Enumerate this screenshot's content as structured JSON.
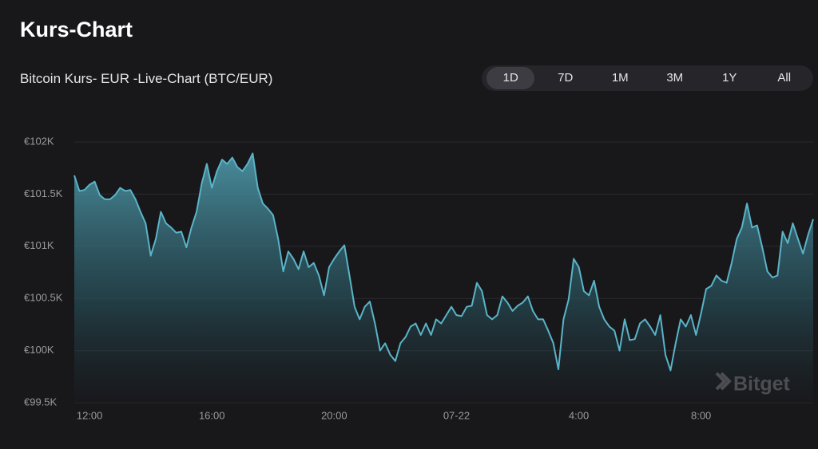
{
  "header": {
    "title": "Kurs-Chart",
    "subtitle": "Bitcoin Kurs- EUR -Live-Chart (BTC/EUR)"
  },
  "range_buttons": {
    "labels": [
      "1D",
      "7D",
      "1M",
      "3M",
      "1Y",
      "All"
    ],
    "selected": "1D"
  },
  "watermark": "Bitget",
  "chart_data": {
    "type": "area",
    "color": "#5ab4c8",
    "grid": true,
    "ylim": [
      99500,
      102000
    ],
    "yticks": [
      {
        "value": 99500,
        "label": "€99.5K"
      },
      {
        "value": 100000,
        "label": "€100K"
      },
      {
        "value": 100500,
        "label": "€100.5K"
      },
      {
        "value": 101000,
        "label": "€101K"
      },
      {
        "value": 101500,
        "label": "€101.5K"
      },
      {
        "value": 102000,
        "label": "€102K"
      }
    ],
    "categories": [
      null,
      null,
      null,
      "12:00",
      null,
      null,
      null,
      null,
      null,
      null,
      null,
      null,
      null,
      null,
      null,
      null,
      null,
      null,
      null,
      null,
      null,
      null,
      null,
      null,
      null,
      null,
      null,
      "16:00",
      null,
      null,
      null,
      null,
      null,
      null,
      null,
      null,
      null,
      null,
      null,
      null,
      null,
      null,
      null,
      null,
      null,
      null,
      null,
      null,
      null,
      null,
      null,
      "20:00",
      null,
      null,
      null,
      null,
      null,
      null,
      null,
      null,
      null,
      null,
      null,
      null,
      null,
      null,
      null,
      null,
      null,
      null,
      null,
      null,
      null,
      null,
      null,
      "07-22",
      null,
      null,
      null,
      null,
      null,
      null,
      null,
      null,
      null,
      null,
      null,
      null,
      null,
      null,
      null,
      null,
      null,
      null,
      null,
      null,
      null,
      null,
      null,
      "4:00",
      null,
      null,
      null,
      null,
      null,
      null,
      null,
      null,
      null,
      null,
      null,
      null,
      null,
      null,
      null,
      null,
      null,
      null,
      null,
      null,
      null,
      null,
      null,
      "8:00",
      null,
      null,
      null,
      null,
      null,
      null,
      null,
      null,
      null,
      null,
      null,
      null,
      null,
      null,
      null,
      null,
      null,
      null,
      null,
      null,
      null,
      null
    ],
    "values": [
      101680,
      101530,
      101540,
      101590,
      101620,
      101490,
      101450,
      101450,
      101490,
      101560,
      101530,
      101540,
      101450,
      101330,
      101220,
      100910,
      101070,
      101330,
      101220,
      101180,
      101130,
      101140,
      100990,
      101180,
      101330,
      101600,
      101790,
      101560,
      101720,
      101830,
      101790,
      101850,
      101760,
      101720,
      101790,
      101890,
      101560,
      101410,
      101360,
      101300,
      101070,
      100760,
      100950,
      100880,
      100780,
      100950,
      100800,
      100840,
      100720,
      100530,
      100800,
      100880,
      100950,
      101010,
      100720,
      100420,
      100300,
      100420,
      100470,
      100260,
      100000,
      100070,
      99960,
      99900,
      100070,
      100130,
      100230,
      100260,
      100150,
      100260,
      100150,
      100300,
      100260,
      100340,
      100420,
      100340,
      100330,
      100420,
      100430,
      100650,
      100570,
      100340,
      100300,
      100340,
      100520,
      100460,
      100380,
      100430,
      100460,
      100520,
      100380,
      100300,
      100300,
      100190,
      100070,
      99820,
      100300,
      100490,
      100880,
      100800,
      100570,
      100530,
      100670,
      100420,
      100300,
      100230,
      100190,
      100000,
      100300,
      100100,
      100110,
      100260,
      100300,
      100230,
      100150,
      100340,
      99960,
      99810,
      100070,
      100300,
      100230,
      100340,
      100150,
      100360,
      100590,
      100620,
      100720,
      100670,
      100650,
      100840,
      101070,
      101180,
      101410,
      101180,
      101200,
      100990,
      100760,
      100700,
      100720,
      101140,
      101030,
      101220,
      101070,
      100930,
      101110,
      101260
    ]
  }
}
